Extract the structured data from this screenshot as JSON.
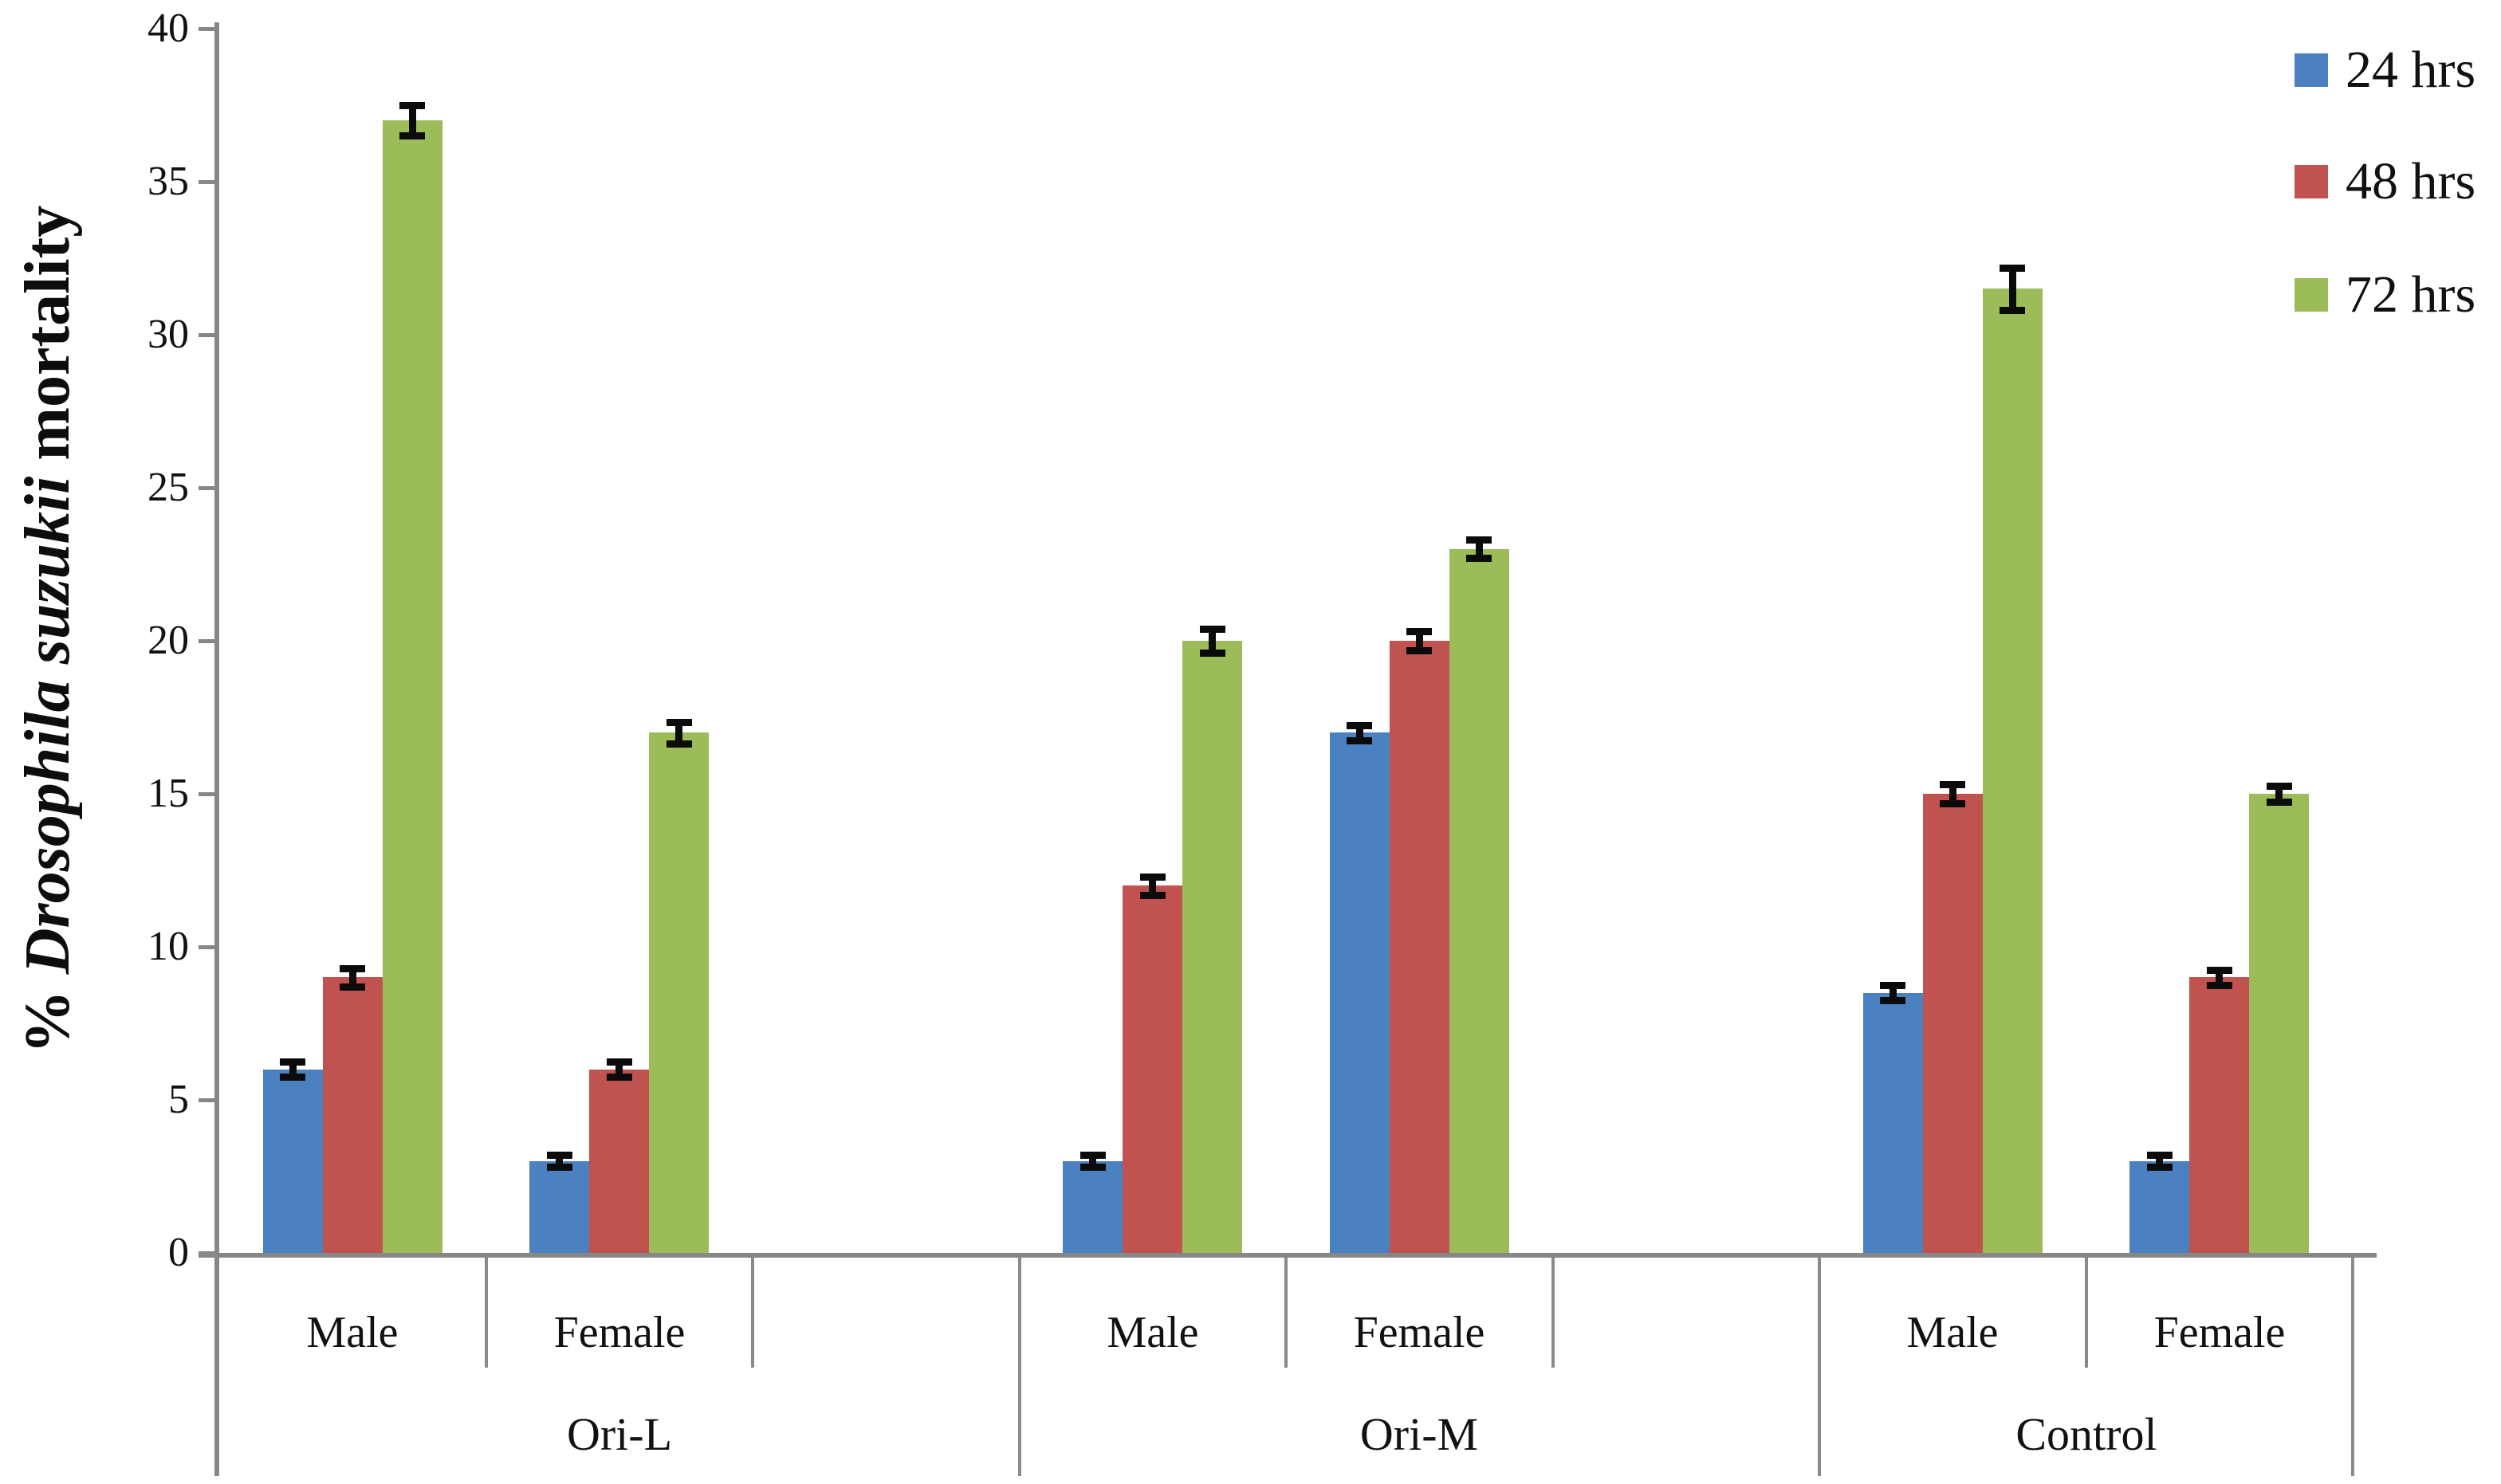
{
  "chart_data": {
    "type": "bar",
    "title": "",
    "ylabel_text": "% Drosophila suzukii mortality",
    "ylabel_parts": {
      "prefix": "% ",
      "italic": "Drosophila suzukii",
      "suffix": " mortality"
    },
    "xlabel": "",
    "ylim": [
      0,
      40
    ],
    "ytick_step": 5,
    "yticks": [
      "0",
      "5",
      "10",
      "15",
      "20",
      "25",
      "30",
      "35",
      "40"
    ],
    "grid": false,
    "legend_position": "top-right",
    "colors": {
      "axis": "#878787",
      "error_bar": "#0b0b0b",
      "background": "#ffffff"
    },
    "series": [
      {
        "name": "24 hrs",
        "color": "#4B80C1"
      },
      {
        "name": "48 hrs",
        "color": "#C05250"
      },
      {
        "name": "72 hrs",
        "color": "#9CBC59"
      }
    ],
    "groups": [
      {
        "label": "Ori-L",
        "categories": [
          {
            "label": "Male",
            "values": [
              6,
              9,
              37
            ],
            "errors": [
              0.25,
              0.3,
              0.5
            ]
          },
          {
            "label": "Female",
            "values": [
              3,
              6,
              17
            ],
            "errors": [
              0.2,
              0.25,
              0.35
            ]
          }
        ]
      },
      {
        "label": "Ori-M",
        "categories": [
          {
            "label": "Male",
            "values": [
              3,
              12,
              20
            ],
            "errors": [
              0.2,
              0.3,
              0.4
            ]
          },
          {
            "label": "Female",
            "values": [
              17,
              20,
              23
            ],
            "errors": [
              0.25,
              0.3,
              0.3
            ]
          }
        ]
      },
      {
        "label": "Control",
        "categories": [
          {
            "label": "Male",
            "values": [
              8.5,
              15,
              31.5
            ],
            "errors": [
              0.25,
              0.3,
              0.7
            ]
          },
          {
            "label": "Female",
            "values": [
              3,
              9,
              15
            ],
            "errors": [
              0.2,
              0.25,
              0.25
            ]
          }
        ]
      }
    ]
  }
}
